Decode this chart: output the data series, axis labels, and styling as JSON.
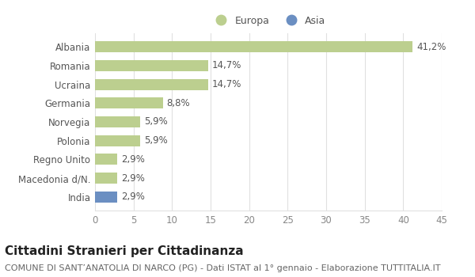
{
  "categories": [
    "Albania",
    "Romania",
    "Ucraina",
    "Germania",
    "Norvegia",
    "Polonia",
    "Regno Unito",
    "Macedonia d/N.",
    "India"
  ],
  "values": [
    41.2,
    14.7,
    14.7,
    8.8,
    5.9,
    5.9,
    2.9,
    2.9,
    2.9
  ],
  "labels": [
    "41,2%",
    "14,7%",
    "14,7%",
    "8,8%",
    "5,9%",
    "5,9%",
    "2,9%",
    "2,9%",
    "2,9%"
  ],
  "colors": [
    "#bccf8f",
    "#bccf8f",
    "#bccf8f",
    "#bccf8f",
    "#bccf8f",
    "#bccf8f",
    "#bccf8f",
    "#bccf8f",
    "#6b8fc2"
  ],
  "europa_color": "#bccf8f",
  "asia_color": "#6b8fc2",
  "xlim": [
    0,
    45
  ],
  "xticks": [
    0,
    5,
    10,
    15,
    20,
    25,
    30,
    35,
    40,
    45
  ],
  "title": "Cittadini Stranieri per Cittadinanza",
  "subtitle": "COMUNE DI SANT’ANATOLIA DI NARCO (PG) - Dati ISTAT al 1° gennaio - Elaborazione TUTTITALIA.IT",
  "background_color": "#ffffff",
  "plot_bg_color": "#ffffff",
  "grid_color": "#e0e0e0",
  "bar_height": 0.6,
  "label_fontsize": 8.5,
  "tick_fontsize": 8.5,
  "title_fontsize": 11,
  "subtitle_fontsize": 8
}
